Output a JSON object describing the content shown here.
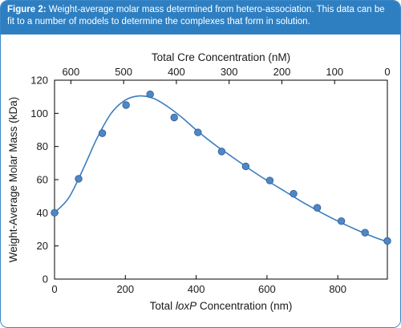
{
  "caption": {
    "label": "Figure 2:",
    "text": " Weight-average molar mass determined from hetero-association. This data can be fit to a number of models to determine the complexes that form in solution."
  },
  "colors": {
    "caption_bg": "#2e7fc2",
    "frame": "#3a86c8",
    "curve": "#3a7dbf",
    "marker_fill": "#4f86c6",
    "marker_stroke": "#2f5f93"
  },
  "chart_data": {
    "type": "scatter",
    "x": [
      0,
      68,
      135,
      202,
      270,
      338,
      405,
      472,
      540,
      608,
      675,
      742,
      810,
      877,
      940
    ],
    "series": [
      {
        "values": [
          40,
          60.5,
          88,
          105,
          111.5,
          97.5,
          88.5,
          77,
          68,
          59.5,
          51.5,
          43,
          35,
          28,
          23
        ]
      }
    ],
    "fit_curve": {
      "x": [
        0,
        40,
        80,
        120,
        160,
        200,
        240,
        280,
        320,
        360,
        400,
        450,
        500,
        550,
        600,
        650,
        700,
        750,
        800,
        850,
        900,
        940
      ],
      "y": [
        40,
        49,
        66,
        85,
        100,
        108,
        110.5,
        109,
        104,
        97.5,
        90,
        81.5,
        74,
        66.5,
        59.5,
        53,
        46.5,
        40.5,
        35,
        30,
        25.5,
        22.5
      ]
    },
    "xlabel_parts": [
      "Total ",
      "loxP",
      " Concentration (nm)"
    ],
    "ylabel": "Weight-Average Molar Mass (kDa)",
    "x2label": "Total Cre Concentration (nM)",
    "xlim": [
      0,
      940
    ],
    "ylim": [
      0,
      120
    ],
    "xticks": [
      0,
      200,
      400,
      600,
      800
    ],
    "yticks": [
      0,
      20,
      40,
      60,
      80,
      100,
      120
    ],
    "x2lim": [
      631,
      0
    ],
    "x2ticks": [
      600,
      500,
      400,
      300,
      200,
      100,
      0
    ],
    "grid": false,
    "legend": "none"
  }
}
